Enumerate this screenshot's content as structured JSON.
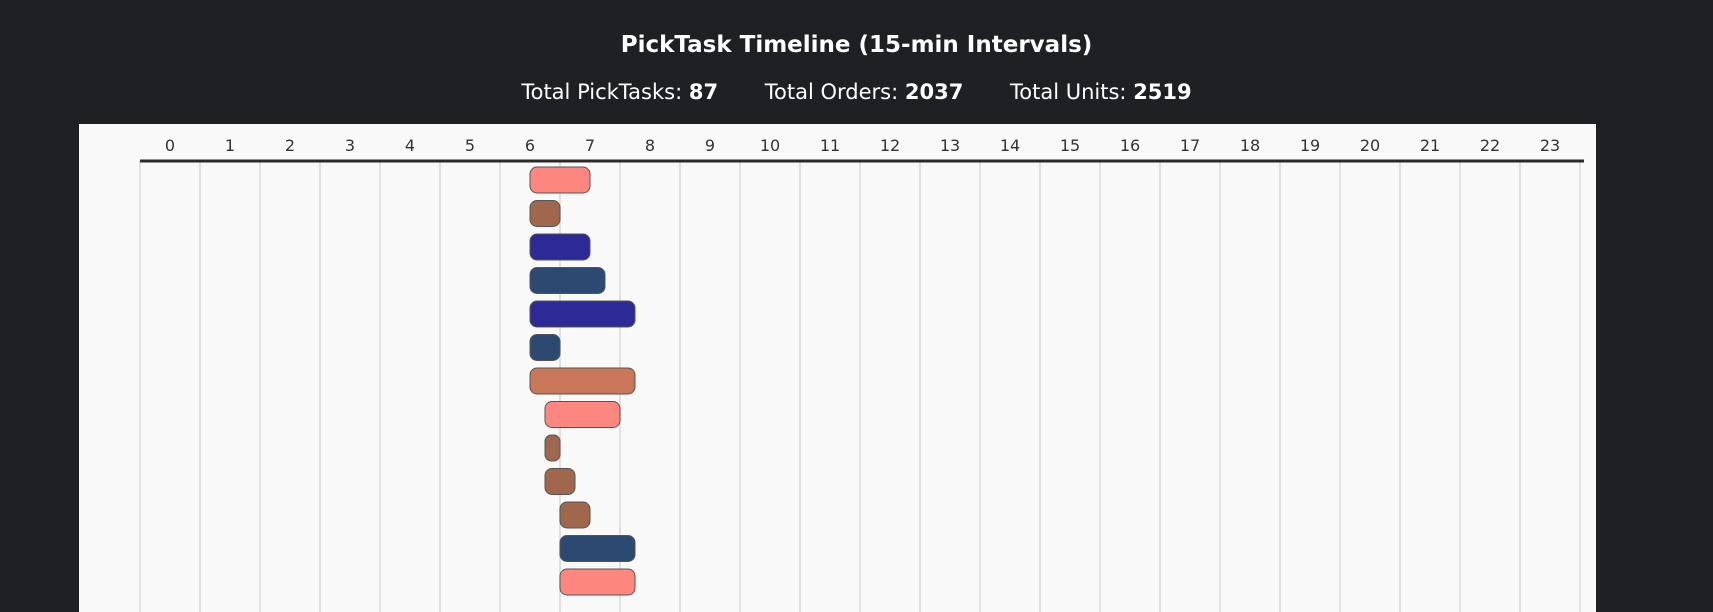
{
  "header": {
    "title": "PickTask Timeline (15-min Intervals)",
    "stats": [
      {
        "label": "Total PickTasks:",
        "value": "87"
      },
      {
        "label": "Total Orders:",
        "value": "2037"
      },
      {
        "label": "Total Units:",
        "value": "2519"
      }
    ]
  },
  "chart_data": {
    "type": "bar",
    "orientation": "horizontal-timeline",
    "x_axis": {
      "position": "top",
      "range": [
        0,
        24
      ],
      "ticks": [
        "0",
        "1",
        "2",
        "3",
        "4",
        "5",
        "6",
        "7",
        "8",
        "9",
        "10",
        "11",
        "12",
        "13",
        "14",
        "15",
        "16",
        "17",
        "18",
        "19",
        "20",
        "21",
        "22",
        "23"
      ]
    },
    "grid": true,
    "tasks": [
      {
        "start": 6.5,
        "end": 7.5,
        "color": "#fd877f"
      },
      {
        "start": 6.5,
        "end": 7.0,
        "color": "#a0674d"
      },
      {
        "start": 6.5,
        "end": 7.5,
        "color": "#2c2a96"
      },
      {
        "start": 6.5,
        "end": 7.75,
        "color": "#2c4a71"
      },
      {
        "start": 6.5,
        "end": 8.25,
        "color": "#2c2a96"
      },
      {
        "start": 6.5,
        "end": 7.0,
        "color": "#2c4a71"
      },
      {
        "start": 6.5,
        "end": 8.25,
        "color": "#c97758"
      },
      {
        "start": 6.75,
        "end": 8.0,
        "color": "#fd877f"
      },
      {
        "start": 6.75,
        "end": 7.0,
        "color": "#a0674d"
      },
      {
        "start": 6.75,
        "end": 7.25,
        "color": "#a0674d"
      },
      {
        "start": 7.0,
        "end": 7.5,
        "color": "#a0674d"
      },
      {
        "start": 7.0,
        "end": 8.25,
        "color": "#2c4a71"
      },
      {
        "start": 7.0,
        "end": 8.25,
        "color": "#fd877f"
      }
    ]
  }
}
